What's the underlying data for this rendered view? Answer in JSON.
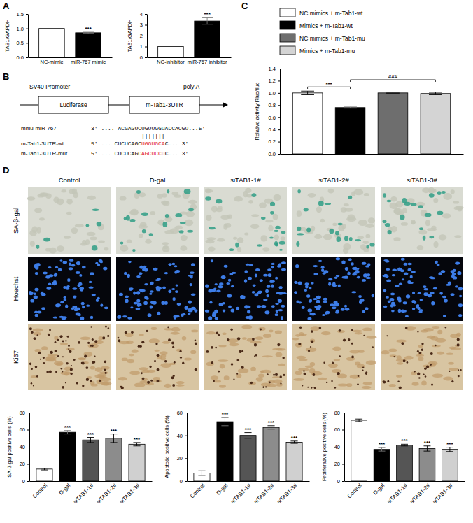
{
  "panels": [
    "A",
    "B",
    "C",
    "D"
  ],
  "chart_data": [
    {
      "type": "bar",
      "ylabel": "TAB1/GAPDH",
      "categories": [
        "NC-mimic",
        "miR-767 mimic"
      ],
      "values": [
        1.0,
        0.85
      ],
      "errors": [
        null,
        0.02
      ],
      "colors": [
        "#ffffff",
        "#000000"
      ],
      "ylim": [
        0,
        1.5
      ],
      "yticks": [
        {
          "value": 0,
          "label": "0.0"
        },
        0.5,
        {
          "value": 1,
          "label": "1.0"
        },
        1.5
      ],
      "annotations": [
        {
          "text": "***",
          "category": "miR-767 mimic"
        }
      ]
    },
    {
      "type": "bar",
      "ylabel": "TAB1/GAPDH",
      "categories": [
        "NC-inhibitor",
        "miR-767 inhibitor"
      ],
      "values": [
        1.0,
        3.35
      ],
      "errors": [
        null,
        0.3
      ],
      "colors": [
        "#ffffff",
        "#000000"
      ],
      "ylim": [
        0,
        4
      ],
      "yticks": [
        0,
        1,
        2,
        3,
        4
      ],
      "annotations": [
        {
          "text": "***",
          "category": "miR-767 inhibitor"
        }
      ]
    },
    {
      "type": "bar",
      "ylabel": "Relative activity Rluc/fluc",
      "categories": [
        "NC mimics + m-Tab1-wt",
        "Mimics + m-Tab1-wt",
        "NC mimics + m-Tab1-mu",
        "Mimics + m-Tab1-mu"
      ],
      "values": [
        1.0,
        0.76,
        1.0,
        0.99
      ],
      "errors": [
        0.03,
        0.01,
        0.01,
        0.02
      ],
      "colors": [
        "#ffffff",
        "#000000",
        "#6e6e6e",
        "#d4d4d4"
      ],
      "legend": "top",
      "tick_labels": "y",
      "ylim": [
        0,
        1.4
      ],
      "yticks": [
        {
          "value": 0,
          "label": "0.0"
        },
        0.2,
        0.4,
        0.6,
        0.8,
        {
          "value": 1,
          "label": "1.0"
        },
        1.2,
        1.4
      ],
      "annotations": [
        {
          "text": "***",
          "between": [
            "NC mimics + m-Tab1-wt",
            "Mimics + m-Tab1-wt"
          ]
        },
        {
          "text": "###",
          "between": [
            "Mimics + m-Tab1-wt",
            "Mimics + m-Tab1-mu"
          ]
        }
      ]
    },
    {
      "type": "bar",
      "ylabel": "SA-β-gal positive cells (%)",
      "categories": [
        "Control",
        "D-gal",
        "siTAB1-1#",
        "siTAB1-2#",
        "siTAB1-3#"
      ],
      "values": [
        14,
        57,
        48,
        50,
        43
      ],
      "errors": [
        1,
        2,
        3,
        5,
        2
      ],
      "colors": [
        "#ffffff",
        "#000000",
        "#555555",
        "#8c8c8c",
        "#d0d0d0"
      ],
      "ylim": [
        0,
        80
      ],
      "yticks": [
        0,
        20,
        40,
        60,
        80
      ],
      "annotations": [
        {
          "text": "***",
          "category": "D-gal"
        },
        {
          "text": "***",
          "category": "siTAB1-1#"
        },
        {
          "text": "***",
          "category": "siTAB1-2#"
        },
        {
          "text": "***",
          "category": "siTAB1-3#"
        }
      ]
    },
    {
      "type": "bar",
      "ylabel": "Apoptotic positive cells (%)",
      "categories": [
        "Control",
        "D-gal",
        "siTAB1-1#",
        "siTAB1-2#",
        "siTAB1-3#"
      ],
      "values": [
        7,
        52,
        40,
        47,
        34
      ],
      "errors": [
        2,
        3.5,
        2.5,
        1.5,
        1
      ],
      "colors": [
        "#ffffff",
        "#000000",
        "#555555",
        "#8c8c8c",
        "#d0d0d0"
      ],
      "ylim": [
        0,
        60
      ],
      "yticks": [
        0,
        20,
        40,
        60
      ],
      "annotations": [
        {
          "text": "***",
          "category": "D-gal"
        },
        {
          "text": "***",
          "category": "siTAB1-1#"
        },
        {
          "text": "***",
          "category": "siTAB1-2#"
        },
        {
          "text": "***",
          "category": "siTAB1-3#"
        }
      ]
    },
    {
      "type": "bar",
      "ylabel": "Proliferative positive cells (%)",
      "categories": [
        "Control",
        "D-gal",
        "siTAB1-1#",
        "siTAB1-2#",
        "siTAB1-3#"
      ],
      "values": [
        71,
        37,
        42,
        38,
        37
      ],
      "errors": [
        1.5,
        2,
        1,
        3,
        2.5
      ],
      "colors": [
        "#ffffff",
        "#000000",
        "#555555",
        "#8c8c8c",
        "#d0d0d0"
      ],
      "ylim": [
        0,
        80
      ],
      "yticks": [
        0,
        20,
        40,
        60,
        80
      ],
      "annotations": [
        {
          "text": "***",
          "category": "D-gal"
        },
        {
          "text": "***",
          "category": "siTAB1-1#"
        },
        {
          "text": "***",
          "category": "siTAB1-2#"
        },
        {
          "text": "***",
          "category": "siTAB1-3#"
        }
      ]
    }
  ],
  "diagram": {
    "promoter": "SV40 Promoter",
    "polya": "poly A",
    "boxes": [
      "Luciferase",
      "m-Tab1-3UTR"
    ],
    "mirna": {
      "name": "mmu-miR-767",
      "sequence": "3' .... ACGAGUCUGUUGGUACCACGU...5'"
    },
    "pairing": "|||||||",
    "targets": [
      {
        "name": "m-Tab1-3UTR-wt",
        "prefix": "5'.... CUCUCAGC",
        "site": "UGGUGCA",
        "suffix": "C... 3'"
      },
      {
        "name": "m-Tab1-3UTR-mut",
        "prefix": "5'.... CUCUCAGC",
        "site": "AGCUCCU",
        "suffix": "C... 3'"
      }
    ]
  },
  "images": {
    "columns": [
      "Control",
      "D-gal",
      "siTAB1-1#",
      "siTAB1-2#",
      "siTAB1-3#"
    ],
    "rows": [
      "SA-β-gal",
      "Hoechst",
      "Ki67"
    ]
  }
}
